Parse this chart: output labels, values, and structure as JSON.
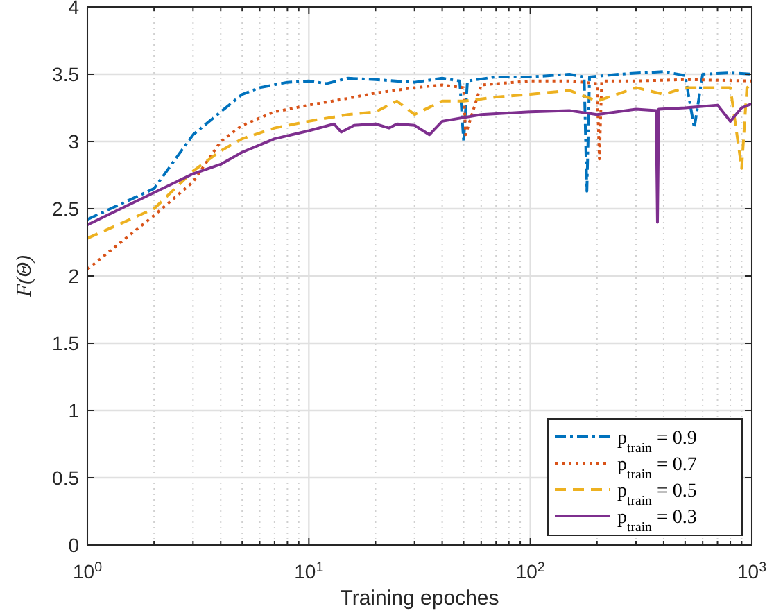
{
  "chart_data": {
    "type": "line",
    "xlabel": "Training epoches",
    "ylabel": "F(Θ)",
    "log": "x",
    "xlim": [
      1,
      1000
    ],
    "ylim": [
      0,
      4
    ],
    "xticks": [
      {
        "value": 1,
        "label": "10$^{0}$"
      },
      {
        "value": 2,
        "label": null
      },
      {
        "value": 3,
        "label": null
      },
      {
        "value": 4,
        "label": null
      },
      {
        "value": 5,
        "label": null
      },
      {
        "value": 6,
        "label": null
      },
      {
        "value": 7,
        "label": null
      },
      {
        "value": 8,
        "label": null
      },
      {
        "value": 9,
        "label": null
      },
      {
        "value": 10,
        "label": "10$^{1}$"
      },
      {
        "value": 20,
        "label": null
      },
      {
        "value": 30,
        "label": null
      },
      {
        "value": 40,
        "label": null
      },
      {
        "value": 50,
        "label": null
      },
      {
        "value": 60,
        "label": null
      },
      {
        "value": 70,
        "label": null
      },
      {
        "value": 80,
        "label": null
      },
      {
        "value": 90,
        "label": null
      },
      {
        "value": 100,
        "label": "10$^{2}$"
      },
      {
        "value": 200,
        "label": null
      },
      {
        "value": 300,
        "label": null
      },
      {
        "value": 400,
        "label": null
      },
      {
        "value": 500,
        "label": null
      },
      {
        "value": 600,
        "label": null
      },
      {
        "value": 700,
        "label": null
      },
      {
        "value": 800,
        "label": null
      },
      {
        "value": 900,
        "label": null
      },
      {
        "value": 1000,
        "label": "10$^{3}$"
      }
    ],
    "yticks": [
      0,
      0.5,
      1,
      1.5,
      2,
      2.5,
      3,
      3.5,
      4
    ],
    "grid": true,
    "legend": "bottom right",
    "series": [
      {
        "name": "p$_{train}$ = 0.9",
        "color": "#0072bd",
        "line_style": "dashdot",
        "x": [
          1,
          2,
          3,
          4,
          5,
          6,
          8,
          10,
          12,
          15,
          20,
          30,
          40,
          48,
          50,
          52,
          70,
          100,
          150,
          175,
          180,
          185,
          250,
          400,
          500,
          550,
          600,
          800,
          1000
        ],
        "values": [
          2.42,
          2.65,
          3.05,
          3.22,
          3.35,
          3.4,
          3.44,
          3.45,
          3.43,
          3.47,
          3.46,
          3.44,
          3.47,
          3.45,
          3.0,
          3.45,
          3.48,
          3.48,
          3.5,
          3.48,
          2.63,
          3.48,
          3.5,
          3.52,
          3.49,
          3.1,
          3.5,
          3.51,
          3.5
        ]
      },
      {
        "name": "p$_{train}$ = 0.7",
        "color": "#d95319",
        "line_style": "dotted",
        "x": [
          1,
          2,
          3,
          4,
          5,
          7,
          10,
          15,
          20,
          30,
          40,
          50,
          51,
          60,
          100,
          150,
          200,
          205,
          210,
          300,
          500,
          1000
        ],
        "values": [
          2.05,
          2.45,
          2.7,
          3.0,
          3.12,
          3.22,
          3.27,
          3.32,
          3.36,
          3.4,
          3.42,
          3.4,
          3.05,
          3.42,
          3.45,
          3.45,
          3.43,
          2.87,
          3.45,
          3.45,
          3.46,
          3.45
        ]
      },
      {
        "name": "p$_{train}$ = 0.5",
        "color": "#edb120",
        "line_style": "dashed",
        "x": [
          1,
          2,
          3,
          4,
          5,
          7,
          10,
          15,
          20,
          25,
          30,
          40,
          50,
          70,
          100,
          150,
          200,
          300,
          400,
          500,
          800,
          900,
          950,
          1000
        ],
        "values": [
          2.28,
          2.5,
          2.78,
          2.93,
          3.02,
          3.1,
          3.15,
          3.2,
          3.22,
          3.3,
          3.2,
          3.3,
          3.3,
          3.33,
          3.35,
          3.38,
          3.3,
          3.4,
          3.35,
          3.4,
          3.4,
          2.8,
          3.4,
          3.42
        ]
      },
      {
        "name": "p$_{train}$ = 0.3",
        "color": "#7e2f8e",
        "line_style": "solid",
        "x": [
          1,
          2,
          3,
          4,
          5,
          7,
          10,
          13,
          14,
          16,
          20,
          23,
          25,
          30,
          35,
          40,
          60,
          100,
          150,
          200,
          300,
          370,
          375,
          380,
          500,
          700,
          800,
          900,
          1000
        ],
        "values": [
          2.38,
          2.62,
          2.76,
          2.83,
          2.92,
          3.02,
          3.08,
          3.13,
          3.07,
          3.12,
          3.13,
          3.1,
          3.13,
          3.12,
          3.05,
          3.15,
          3.2,
          3.22,
          3.23,
          3.2,
          3.24,
          3.23,
          2.4,
          3.24,
          3.25,
          3.27,
          3.15,
          3.25,
          3.28
        ]
      }
    ]
  }
}
